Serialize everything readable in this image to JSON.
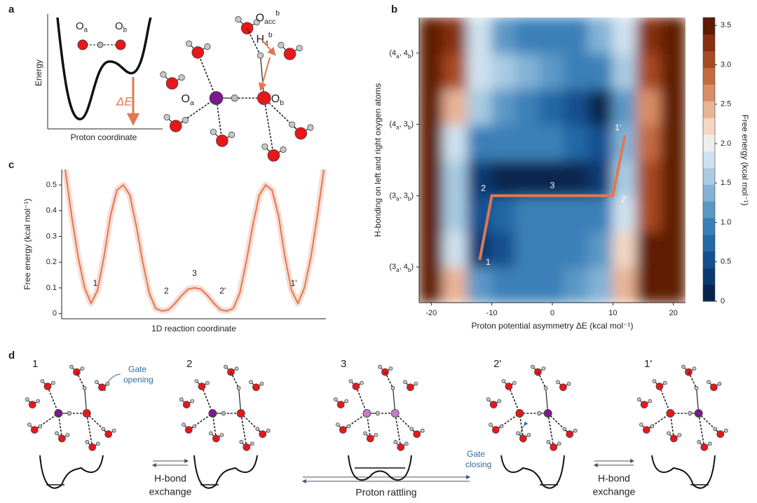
{
  "panel_labels": [
    "a",
    "b",
    "c",
    "d"
  ],
  "panel_a": {
    "energy_axis": "Energy",
    "coordinate_axis": "Proton coordinate",
    "delta": "ΔE",
    "oxygen_a": {
      "main": "O",
      "sub": "a"
    },
    "oxygen_b": {
      "main": "O",
      "sub": "b"
    },
    "acceptor": {
      "main": "O",
      "sub": "acc",
      "sup": "b"
    },
    "hydrogen": {
      "main": "H",
      "sub": "4",
      "sup": "b"
    }
  },
  "chart_data": [
    {
      "type": "line",
      "ylabel": "Free energy (kcal mol⁻¹)",
      "xlabel": "1D reaction coordinate",
      "color": "#e07850",
      "categories": [
        null,
        null,
        null,
        null,
        null,
        null,
        null,
        null,
        null,
        null,
        null,
        null,
        null,
        null,
        null,
        null,
        null,
        null,
        null,
        null,
        null,
        null,
        null,
        null,
        null,
        null,
        null,
        null,
        null,
        null,
        null,
        null,
        null,
        null,
        null,
        null,
        null,
        null,
        null,
        null,
        null
      ],
      "values": [
        0.56,
        0.38,
        0.22,
        0.1,
        0.04,
        0.09,
        0.22,
        0.38,
        0.48,
        0.5,
        0.46,
        0.34,
        0.2,
        0.08,
        0.02,
        0.01,
        0.015,
        0.04,
        0.07,
        0.095,
        0.1,
        0.095,
        0.07,
        0.04,
        0.015,
        0.01,
        0.02,
        0.08,
        0.2,
        0.34,
        0.46,
        0.5,
        0.48,
        0.38,
        0.22,
        0.09,
        0.04,
        0.1,
        0.22,
        0.38,
        0.56
      ],
      "point_labels": [
        null,
        null,
        null,
        null,
        "1",
        null,
        null,
        null,
        null,
        null,
        null,
        null,
        null,
        null,
        null,
        "2",
        null,
        null,
        null,
        null,
        "3",
        null,
        null,
        null,
        null,
        "2'",
        null,
        null,
        null,
        null,
        null,
        null,
        null,
        null,
        null,
        null,
        "1'",
        null,
        null,
        null,
        null
      ],
      "ylim": [
        -0.02,
        0.56
      ],
      "yticks": [
        0,
        0.1,
        0.2,
        0.3,
        0.4,
        0.5
      ]
    },
    {
      "type": "heatmap",
      "ylabel": "H-bonding on left and right oxygen atoms",
      "xlabel": "Proton potential asymmetry ΔE (kcal mol⁻¹)",
      "colorbar_label": "Free energy (kcal mol⁻¹)",
      "xlim": [
        -22,
        22
      ],
      "xticks": [
        -20,
        -10,
        0,
        10,
        20
      ],
      "ylim": [
        -0.5,
        3.5
      ],
      "yticks": [
        {
          "value": 0,
          "label": "(3a, 4b)"
        },
        {
          "value": 1,
          "label": "(3a, 3b)"
        },
        {
          "value": 2,
          "label": "(4a, 3b)"
        },
        {
          "value": 3,
          "label": "(4a, 4b)"
        }
      ],
      "xbins": [
        -22,
        -18,
        -14,
        -10,
        -6,
        -2,
        2,
        6,
        10,
        14,
        18,
        22
      ],
      "ybins": [
        -0.5,
        0,
        0.5,
        1,
        1.5,
        2,
        2.5,
        3,
        3.5
      ],
      "z": [
        [
          3.5,
          2.5,
          1.2,
          0.9,
          0.9,
          1.0,
          1.1,
          1.3,
          2.4,
          3.5,
          3.5
        ],
        [
          3.5,
          1.8,
          0.3,
          0.6,
          0.9,
          1.0,
          1.0,
          1.2,
          2.2,
          3.5,
          3.5
        ],
        [
          3.5,
          1.6,
          0.6,
          0.8,
          0.9,
          0.9,
          0.9,
          1.0,
          1.8,
          3.0,
          3.5
        ],
        [
          3.5,
          1.5,
          0.3,
          0.2,
          0.2,
          0.2,
          0.2,
          0.3,
          1.5,
          3.0,
          3.5
        ],
        [
          3.5,
          1.8,
          1.0,
          0.9,
          0.9,
          0.9,
          0.8,
          0.6,
          1.4,
          2.8,
          3.5
        ],
        [
          3.5,
          2.4,
          1.5,
          1.2,
          1.0,
          0.8,
          0.5,
          0.2,
          1.2,
          2.6,
          3.5
        ],
        [
          3.5,
          3.0,
          1.7,
          1.6,
          1.4,
          1.2,
          1.0,
          1.0,
          1.6,
          3.0,
          3.5
        ],
        [
          3.5,
          3.3,
          1.8,
          1.1,
          0.9,
          0.9,
          1.0,
          1.3,
          1.9,
          3.3,
          3.5
        ]
      ],
      "clim": [
        0,
        3.6
      ],
      "cticks": [
        0,
        0.5,
        {
          "value": 1,
          "label": "1.0"
        },
        1.5,
        {
          "value": 2,
          "label": "2.0"
        },
        2.5,
        {
          "value": 3,
          "label": "3.0"
        },
        3.5
      ],
      "colormap": [
        "#08254f",
        "#0b3a73",
        "#15508f",
        "#2468a6",
        "#3a80b8",
        "#5b98c6",
        "#82b2d5",
        "#a9cbe3",
        "#cfe1ee",
        "#eeeeee",
        "#f3d6c4",
        "#e9b395",
        "#d98d66",
        "#c46a3f",
        "#a84a24",
        "#86300f",
        "#5e1a05"
      ],
      "path": {
        "x": [
          -12,
          -10,
          0,
          10,
          12
        ],
        "y": [
          0.1,
          1,
          1,
          1,
          1.85
        ],
        "labels": [
          "1",
          "2",
          "3",
          "2'",
          "1'"
        ],
        "color": "#e07850"
      }
    }
  ],
  "panel_d": {
    "states": [
      "1",
      "2",
      "3",
      "2'",
      "1'"
    ],
    "gate_opening": [
      "Gate",
      "opening"
    ],
    "gate_closing": [
      "Gate",
      "closing"
    ],
    "hbond_exchange": [
      "H-bond",
      "exchange"
    ],
    "proton_rattling": "Proton rattling"
  }
}
